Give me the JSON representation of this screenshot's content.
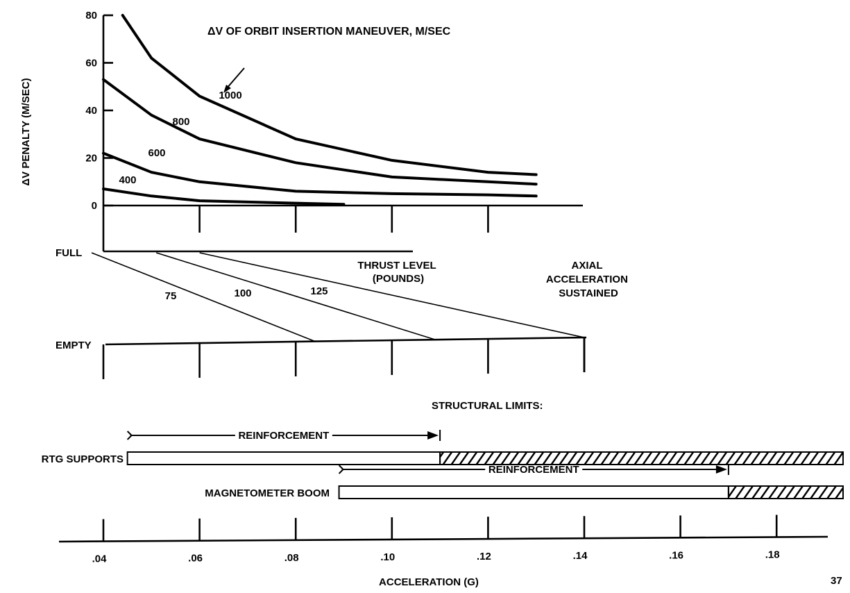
{
  "chart_data": [
    {
      "type": "line",
      "ylabel": "ΔV PENALTY (M/SEC)",
      "ylim": [
        0,
        80
      ],
      "yticks": [
        "80",
        "60",
        "40",
        "20",
        "0"
      ],
      "annotation": "ΔV OF ORBIT INSERTION MANEUVER, M/SEC",
      "series": [
        {
          "name": "1000",
          "x": [
            0.044,
            0.05,
            0.06,
            0.08,
            0.1,
            0.12,
            0.13
          ],
          "values": [
            80,
            62,
            46,
            28,
            19,
            14,
            13
          ]
        },
        {
          "name": "800",
          "x": [
            0.04,
            0.05,
            0.06,
            0.08,
            0.1,
            0.12,
            0.13
          ],
          "values": [
            53,
            38,
            28,
            18,
            12,
            10,
            9
          ]
        },
        {
          "name": "600",
          "x": [
            0.04,
            0.05,
            0.06,
            0.08,
            0.1,
            0.12,
            0.13
          ],
          "values": [
            22,
            14,
            10,
            6,
            5,
            4.5,
            4
          ]
        },
        {
          "name": "400",
          "x": [
            0.04,
            0.05,
            0.06,
            0.08,
            0.09
          ],
          "values": [
            7,
            4,
            2,
            1,
            0.5
          ]
        }
      ]
    },
    {
      "type": "line",
      "title": "AXIAL ACCELERATION SUSTAINED",
      "ylabels": [
        "FULL",
        "EMPTY"
      ],
      "legend_title": "THRUST LEVEL (POUNDS)",
      "series": [
        {
          "name": "75",
          "x_full": 0.04,
          "x_empty": 0.084
        },
        {
          "name": "100",
          "x_full": 0.051,
          "x_empty": 0.109
        },
        {
          "name": "125",
          "x_full": 0.06,
          "x_empty": 0.14
        }
      ]
    },
    {
      "type": "bar",
      "title": "STRUCTURAL LIMITS:",
      "xlabel": "ACCELERATION (G)",
      "xticks": [
        ".04",
        ".06",
        ".08",
        ".10",
        ".12",
        ".14",
        ".16",
        ".18"
      ],
      "xlim": [
        0.04,
        0.19
      ],
      "bars": [
        {
          "name": "RTG SUPPORTS",
          "start": 0.045,
          "limit": 0.11,
          "end": 0.19,
          "reinforcement": "REINFORCEMENT"
        },
        {
          "name": "MAGNETOMETER BOOM",
          "start": 0.089,
          "limit": 0.17,
          "end": 0.19,
          "reinforcement": "REINFORCEMENT"
        }
      ]
    }
  ],
  "page_number": "37"
}
